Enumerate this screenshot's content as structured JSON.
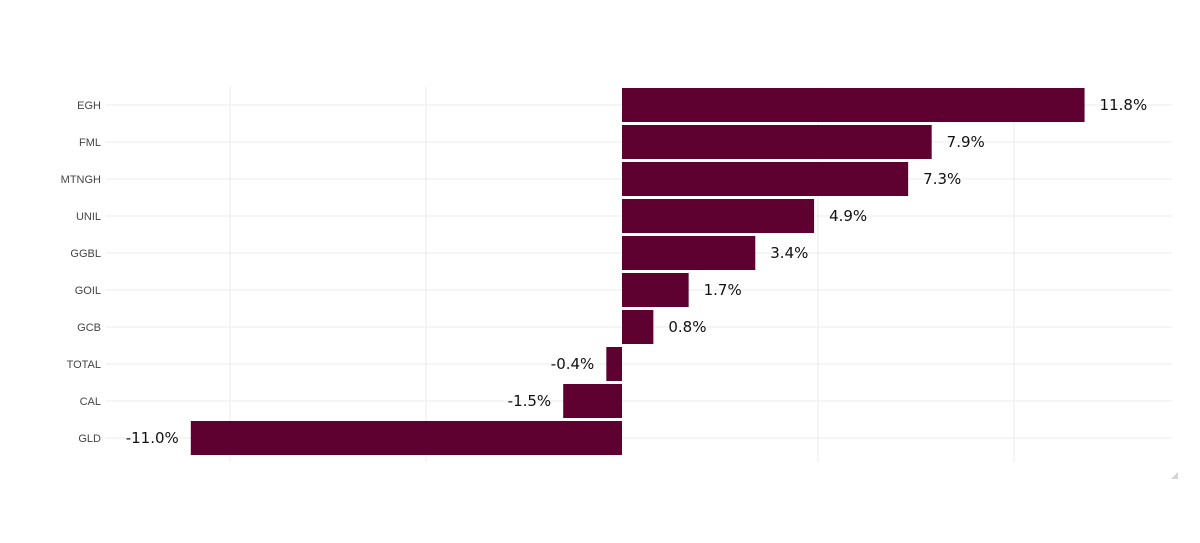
{
  "chart_data": {
    "type": "bar",
    "orientation": "horizontal",
    "categories": [
      "EGH",
      "FML",
      "MTNGH",
      "UNIL",
      "GGBL",
      "GOIL",
      "GCB",
      "TOTAL",
      "CAL",
      "GLD"
    ],
    "values": [
      11.8,
      7.9,
      7.3,
      4.9,
      3.4,
      1.7,
      0.8,
      -0.4,
      -1.5,
      -11.0
    ],
    "value_labels": [
      "11.8%",
      "7.9%",
      "7.3%",
      "4.9%",
      "3.4%",
      "1.7%",
      "0.8%",
      "-0.4%",
      "-1.5%",
      "-11.0%"
    ],
    "xlim": [
      -10,
      12
    ],
    "x_gridlines": [
      -10,
      -5,
      5,
      10
    ],
    "grid": true,
    "bar_color": "#5e0030",
    "title": "",
    "xlabel": "",
    "ylabel": ""
  }
}
